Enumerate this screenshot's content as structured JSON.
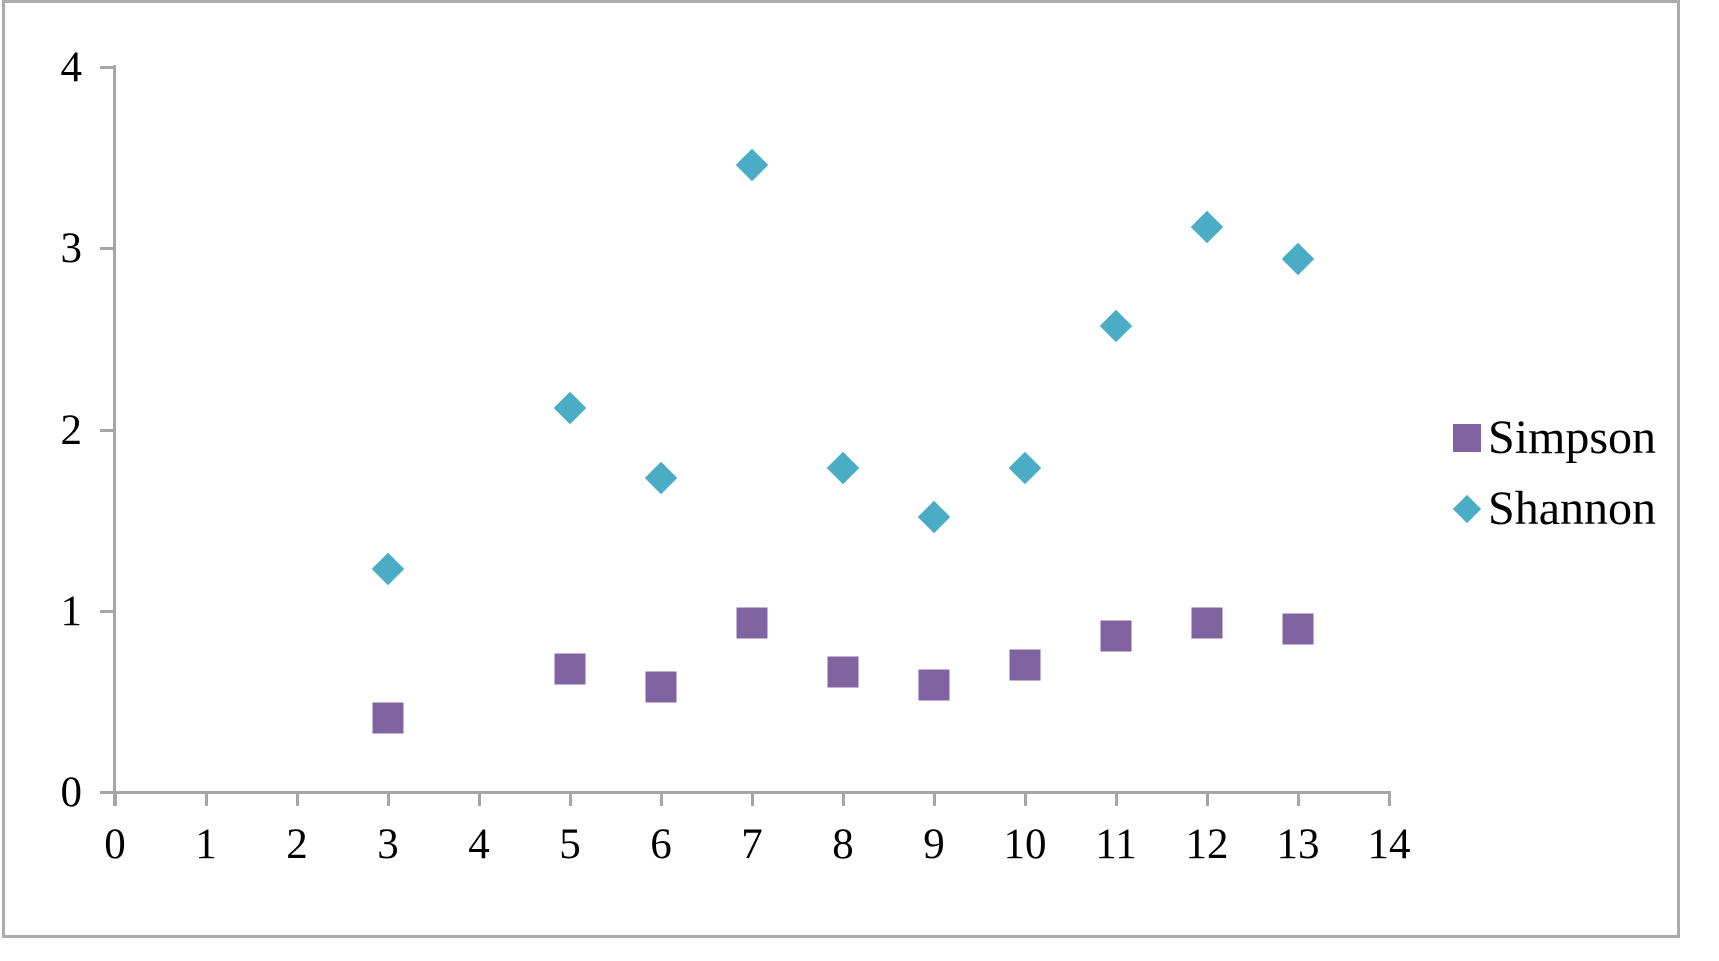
{
  "chart_data": {
    "type": "scatter",
    "title": "",
    "xlabel": "",
    "ylabel": "",
    "x": [
      3,
      5,
      6,
      7,
      8,
      9,
      10,
      11,
      12,
      13
    ],
    "series": [
      {
        "name": "Simpson",
        "marker": "square",
        "color": "#8064A2",
        "values": [
          0.41,
          0.68,
          0.58,
          0.93,
          0.66,
          0.59,
          0.7,
          0.86,
          0.93,
          0.9
        ]
      },
      {
        "name": "Shannon",
        "marker": "diamond",
        "color": "#4BACC6",
        "values": [
          1.23,
          2.12,
          1.73,
          3.46,
          1.79,
          1.52,
          1.79,
          2.57,
          3.12,
          2.94
        ]
      }
    ],
    "xlim": [
      0,
      14
    ],
    "ylim": [
      0,
      4
    ],
    "x_tick_labels": [
      "0",
      "1",
      "2",
      "3",
      "4",
      "5",
      "6",
      "7",
      "8",
      "9",
      "10",
      "11",
      "12",
      "13",
      "14"
    ],
    "y_tick_labels": [
      "0",
      "1",
      "2",
      "3",
      "4"
    ],
    "grid": false,
    "legend_position": "right",
    "axis_color": "#A6A6A6",
    "frame_border_color": "#ABABAB",
    "text_color": "#000000"
  }
}
